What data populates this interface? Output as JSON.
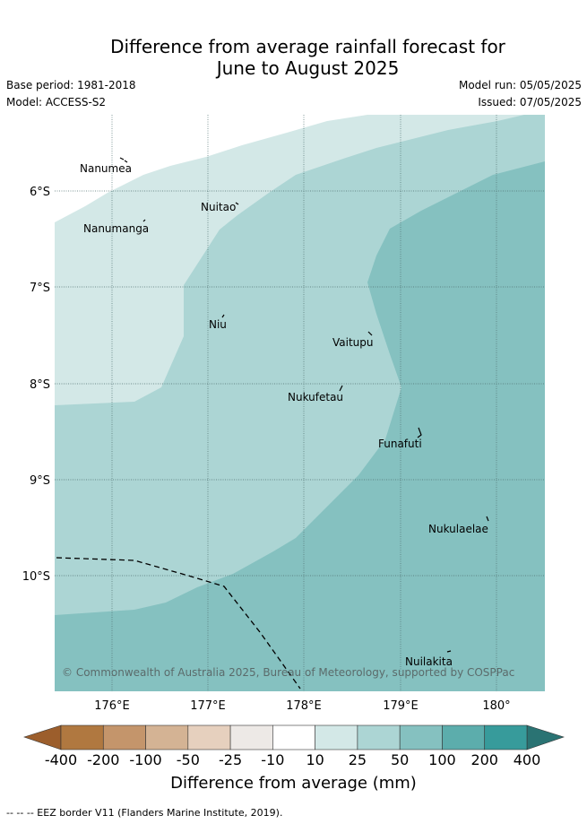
{
  "title_line1": "Difference from average rainfall forecast for",
  "title_line2": "June to August 2025",
  "base_period": "Base period: 1981-2018",
  "model": "Model: ACCESS-S2",
  "model_run": "Model run: 05/05/2025",
  "issued": "Issued: 07/05/2025",
  "copyright": "© Commonwealth of Australia 2025, Bureau of Meteorology, supported by COSPPac",
  "axes": {
    "lon_ticks": [
      "176°E",
      "177°E",
      "178°E",
      "179°E",
      "180°"
    ],
    "lat_ticks": [
      "6°S",
      "7°S",
      "8°S",
      "9°S",
      "10°S"
    ]
  },
  "islands": [
    "Nanumea",
    "Nanumanga",
    "Nuitao",
    "Niu",
    "Vaitupu",
    "Nukufetau",
    "Funafuti",
    "Nukulaelae",
    "Nuilakita"
  ],
  "colorbar": {
    "labels": [
      "-400",
      "-200",
      "-100",
      "-50",
      "-25",
      "-10",
      "10",
      "25",
      "50",
      "100",
      "200",
      "400"
    ],
    "colors": [
      "#9c5e2c",
      "#b07840",
      "#c4956b",
      "#d4b394",
      "#e6d0be",
      "#ede9e6",
      "#ffffff",
      "#d3e8e7",
      "#acd5d4",
      "#85c1c0",
      "#5cadac",
      "#379b9b",
      "#2a7373"
    ],
    "title": "Difference from average (mm)"
  },
  "legend_note": "--  --  -- EEZ border V11 (Flanders Marine Institute, 2019)."
}
